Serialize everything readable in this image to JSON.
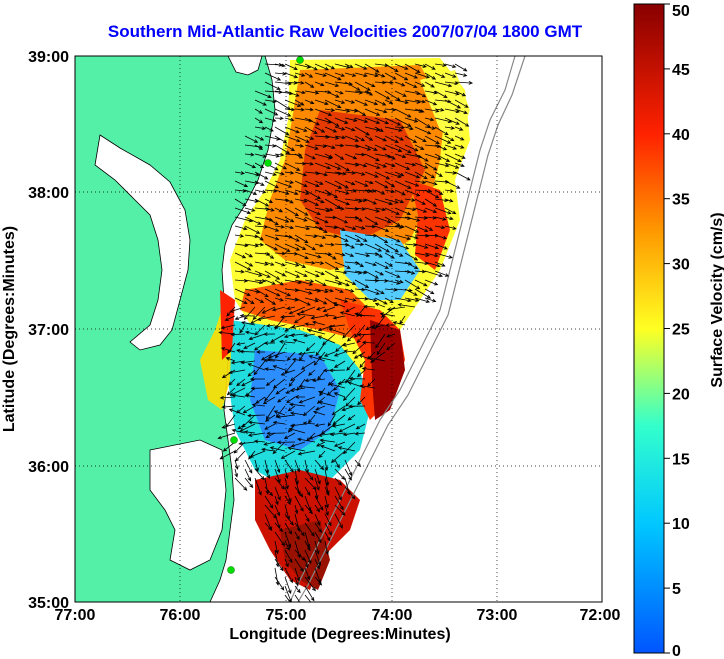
{
  "title": "Southern Mid-Atlantic Raw Velocities 2007/07/04 1800 GMT",
  "map": {
    "xlabel": "Longitude (Degrees:Minutes)",
    "ylabel": "Latitude (Degrees:Minutes)",
    "x_ticks": [
      "77:00",
      "76:00",
      "75:00",
      "74:00",
      "73:00",
      "72:00"
    ],
    "y_ticks": [
      "39:00",
      "38:00",
      "37:00",
      "36:00",
      "35:00"
    ],
    "lon_range": [
      -77,
      -72
    ],
    "lat_range": [
      35,
      39
    ],
    "grid": "dotted",
    "land_color": "#55f0a8",
    "arrow_color": "#000000",
    "station_color": "#00dd00"
  },
  "colorbar": {
    "label": "Surface Velocity (cm/s)",
    "ticks": [
      "0",
      "5",
      "10",
      "15",
      "20",
      "25",
      "30",
      "35",
      "40",
      "45",
      "50"
    ],
    "range": [
      0,
      50
    ],
    "colormap": "jet"
  }
}
